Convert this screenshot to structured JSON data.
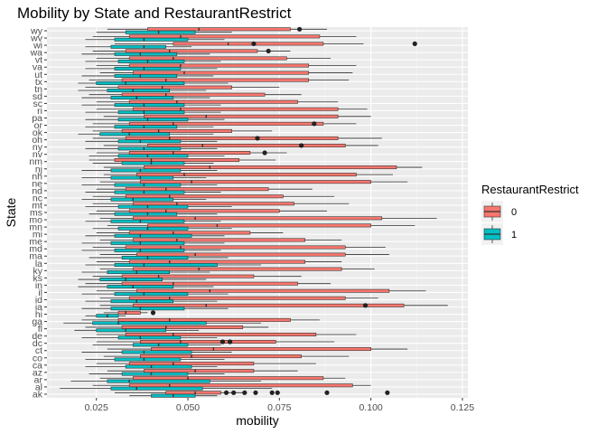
{
  "chart_data": {
    "type": "boxplot-horizontal",
    "title": "Mobility by State and RestaurantRestrict",
    "xlabel": "mobility",
    "ylabel": "State",
    "xlim": [
      0.0115,
      0.1265
    ],
    "x_ticks": [
      0.025,
      0.05,
      0.075,
      0.1,
      0.125
    ],
    "x_tick_labels": [
      "0.025",
      "0.050",
      "0.075",
      "0.100",
      "0.125"
    ],
    "grid": true,
    "legend": {
      "title": "RestaurantRestrict",
      "placement": "right",
      "entries": [
        {
          "label": "0",
          "color": "#F8766D"
        },
        {
          "label": "1",
          "color": "#00BFC4"
        }
      ]
    },
    "categories": [
      "ak",
      "al",
      "ar",
      "az",
      "ca",
      "co",
      "ct",
      "dc",
      "de",
      "fl",
      "ga",
      "hi",
      "ia",
      "id",
      "il",
      "in",
      "ks",
      "ky",
      "la",
      "ma",
      "md",
      "me",
      "mi",
      "mn",
      "mo",
      "ms",
      "mt",
      "nc",
      "nd",
      "ne",
      "nh",
      "nj",
      "nm",
      "nv",
      "ny",
      "oh",
      "ok",
      "or",
      "pa",
      "ri",
      "sc",
      "sd",
      "tn",
      "tx",
      "ut",
      "va",
      "vt",
      "wa",
      "wi",
      "wv",
      "wy"
    ],
    "series": [
      {
        "name": "0",
        "color": "#F8766D",
        "boxes": [
          [
            0.03,
            0.044,
            0.052,
            0.059,
            0.066
          ],
          [
            0.024,
            0.034,
            0.045,
            0.095,
            0.1
          ],
          [
            0.026,
            0.035,
            0.05,
            0.087,
            0.093
          ],
          [
            0.028,
            0.038,
            0.052,
            0.068,
            0.08
          ],
          [
            0.025,
            0.034,
            0.046,
            0.068,
            0.085
          ],
          [
            0.027,
            0.037,
            0.051,
            0.081,
            0.094
          ],
          [
            0.028,
            0.04,
            0.057,
            0.1,
            0.11
          ],
          [
            0.025,
            0.037,
            0.048,
            0.074,
            0.09
          ],
          [
            0.025,
            0.033,
            0.046,
            0.085,
            0.096
          ],
          [
            0.022,
            0.032,
            0.044,
            0.065,
            0.072
          ],
          [
            0.021,
            0.031,
            0.045,
            0.078,
            0.086
          ],
          [
            0.027,
            0.031,
            0.033,
            0.037,
            0.039
          ],
          [
            0.026,
            0.035,
            0.055,
            0.109,
            0.121
          ],
          [
            0.026,
            0.034,
            0.045,
            0.093,
            0.102
          ],
          [
            0.025,
            0.036,
            0.056,
            0.105,
            0.115
          ],
          [
            0.022,
            0.032,
            0.046,
            0.08,
            0.089
          ],
          [
            0.024,
            0.032,
            0.042,
            0.068,
            0.081
          ],
          [
            0.026,
            0.035,
            0.053,
            0.092,
            0.101
          ],
          [
            0.025,
            0.034,
            0.045,
            0.082,
            0.092
          ],
          [
            0.026,
            0.036,
            0.052,
            0.093,
            0.105
          ],
          [
            0.024,
            0.033,
            0.048,
            0.093,
            0.104
          ],
          [
            0.026,
            0.035,
            0.047,
            0.082,
            0.092
          ],
          [
            0.025,
            0.034,
            0.046,
            0.067,
            0.076
          ],
          [
            0.028,
            0.039,
            0.058,
            0.1,
            0.112
          ],
          [
            0.026,
            0.035,
            0.052,
            0.103,
            0.118
          ],
          [
            0.025,
            0.034,
            0.044,
            0.075,
            0.088
          ],
          [
            0.024,
            0.035,
            0.047,
            0.079,
            0.094
          ],
          [
            0.024,
            0.033,
            0.045,
            0.076,
            0.09
          ],
          [
            0.025,
            0.033,
            0.044,
            0.072,
            0.084
          ],
          [
            0.026,
            0.037,
            0.051,
            0.1,
            0.11
          ],
          [
            0.027,
            0.036,
            0.049,
            0.096,
            0.106
          ],
          [
            0.027,
            0.038,
            0.056,
            0.107,
            0.114
          ],
          [
            0.023,
            0.03,
            0.04,
            0.064,
            0.074
          ],
          [
            0.025,
            0.034,
            0.046,
            0.067,
            0.077
          ],
          [
            0.027,
            0.039,
            0.054,
            0.093,
            0.102
          ],
          [
            0.024,
            0.033,
            0.045,
            0.091,
            0.103
          ],
          [
            0.024,
            0.032,
            0.042,
            0.062,
            0.073
          ],
          [
            0.024,
            0.034,
            0.046,
            0.087,
            0.096
          ],
          [
            0.027,
            0.038,
            0.055,
            0.091,
            0.1
          ],
          [
            0.025,
            0.035,
            0.048,
            0.091,
            0.099
          ],
          [
            0.025,
            0.034,
            0.047,
            0.08,
            0.091
          ],
          [
            0.023,
            0.032,
            0.044,
            0.071,
            0.081
          ],
          [
            0.022,
            0.031,
            0.043,
            0.062,
            0.075
          ],
          [
            0.023,
            0.032,
            0.044,
            0.083,
            0.094
          ],
          [
            0.026,
            0.035,
            0.049,
            0.083,
            0.095
          ],
          [
            0.025,
            0.034,
            0.048,
            0.083,
            0.096
          ],
          [
            0.025,
            0.034,
            0.046,
            0.077,
            0.089
          ],
          [
            0.024,
            0.033,
            0.045,
            0.069,
            0.078
          ],
          [
            0.03,
            0.046,
            0.061,
            0.087,
            0.098
          ],
          [
            0.024,
            0.034,
            0.048,
            0.086,
            0.096
          ],
          [
            0.028,
            0.039,
            0.053,
            0.078,
            0.088
          ]
        ]
      },
      {
        "name": "1",
        "color": "#00BFC4",
        "boxes": [
          [
            0.034,
            0.04,
            0.046,
            0.052,
            0.058
          ],
          [
            0.015,
            0.029,
            0.036,
            0.054,
            0.073
          ],
          [
            0.018,
            0.028,
            0.034,
            0.056,
            0.07
          ],
          [
            0.023,
            0.032,
            0.04,
            0.05,
            0.06
          ],
          [
            0.022,
            0.033,
            0.04,
            0.051,
            0.058
          ],
          [
            0.022,
            0.03,
            0.038,
            0.048,
            0.06
          ],
          [
            0.021,
            0.032,
            0.038,
            0.051,
            0.062
          ],
          [
            0.024,
            0.035,
            0.042,
            0.05,
            0.059
          ],
          [
            0.021,
            0.031,
            0.037,
            0.048,
            0.058
          ],
          [
            0.019,
            0.025,
            0.033,
            0.044,
            0.053
          ],
          [
            0.016,
            0.024,
            0.031,
            0.055,
            0.07
          ],
          [
            0.022,
            0.025,
            0.028,
            0.031,
            0.033
          ],
          [
            0.021,
            0.029,
            0.037,
            0.049,
            0.061
          ],
          [
            0.022,
            0.029,
            0.036,
            0.046,
            0.058
          ],
          [
            0.021,
            0.03,
            0.038,
            0.05,
            0.061
          ],
          [
            0.02,
            0.028,
            0.035,
            0.046,
            0.057
          ],
          [
            0.02,
            0.026,
            0.033,
            0.043,
            0.055
          ],
          [
            0.021,
            0.028,
            0.036,
            0.045,
            0.056
          ],
          [
            0.022,
            0.03,
            0.038,
            0.058,
            0.07
          ],
          [
            0.023,
            0.032,
            0.039,
            0.05,
            0.061
          ],
          [
            0.021,
            0.03,
            0.037,
            0.049,
            0.059
          ],
          [
            0.021,
            0.029,
            0.037,
            0.049,
            0.06
          ],
          [
            0.022,
            0.03,
            0.037,
            0.051,
            0.06
          ],
          [
            0.024,
            0.031,
            0.039,
            0.05,
            0.062
          ],
          [
            0.022,
            0.029,
            0.037,
            0.049,
            0.059
          ],
          [
            0.023,
            0.03,
            0.039,
            0.047,
            0.058
          ],
          [
            0.022,
            0.031,
            0.039,
            0.05,
            0.062
          ],
          [
            0.021,
            0.029,
            0.035,
            0.046,
            0.055
          ],
          [
            0.022,
            0.03,
            0.038,
            0.049,
            0.059
          ],
          [
            0.021,
            0.03,
            0.038,
            0.048,
            0.058
          ],
          [
            0.021,
            0.029,
            0.037,
            0.046,
            0.055
          ],
          [
            0.021,
            0.029,
            0.037,
            0.048,
            0.058
          ],
          [
            0.024,
            0.032,
            0.04,
            0.049,
            0.057
          ],
          [
            0.023,
            0.031,
            0.039,
            0.05,
            0.06
          ],
          [
            0.022,
            0.031,
            0.038,
            0.048,
            0.058
          ],
          [
            0.022,
            0.031,
            0.037,
            0.048,
            0.058
          ],
          [
            0.02,
            0.026,
            0.034,
            0.045,
            0.057
          ],
          [
            0.022,
            0.03,
            0.038,
            0.047,
            0.057
          ],
          [
            0.022,
            0.031,
            0.039,
            0.05,
            0.06
          ],
          [
            0.022,
            0.031,
            0.038,
            0.049,
            0.059
          ],
          [
            0.021,
            0.03,
            0.038,
            0.049,
            0.059
          ],
          [
            0.021,
            0.029,
            0.036,
            0.046,
            0.056
          ],
          [
            0.02,
            0.028,
            0.035,
            0.045,
            0.055
          ],
          [
            0.02,
            0.025,
            0.033,
            0.049,
            0.061
          ],
          [
            0.021,
            0.03,
            0.037,
            0.047,
            0.057
          ],
          [
            0.022,
            0.03,
            0.038,
            0.048,
            0.058
          ],
          [
            0.022,
            0.031,
            0.039,
            0.049,
            0.059
          ],
          [
            0.021,
            0.03,
            0.037,
            0.047,
            0.056
          ],
          [
            0.022,
            0.029,
            0.038,
            0.044,
            0.051
          ],
          [
            0.022,
            0.03,
            0.038,
            0.05,
            0.06
          ],
          [
            0.025,
            0.033,
            0.042,
            0.052,
            0.062
          ]
        ]
      }
    ],
    "outliers": [
      {
        "series": "0",
        "state": "ak",
        "values": [
          0.0605,
          0.0625,
          0.0655,
          0.0685,
          0.073,
          0.0745,
          0.088,
          0.1045
        ]
      },
      {
        "series": "0",
        "state": "hi",
        "values": [
          0.0405
        ]
      },
      {
        "series": "0",
        "state": "ia",
        "values": [
          0.0985
        ]
      },
      {
        "series": "0",
        "state": "dc",
        "values": [
          0.0595,
          0.0615
        ]
      },
      {
        "series": "0",
        "state": "ny",
        "values": [
          0.081
        ]
      },
      {
        "series": "0",
        "state": "nv",
        "values": [
          0.071
        ]
      },
      {
        "series": "0",
        "state": "oh",
        "values": [
          0.069
        ]
      },
      {
        "series": "0",
        "state": "or",
        "values": [
          0.0845
        ]
      },
      {
        "series": "0",
        "state": "wa",
        "values": [
          0.072
        ]
      },
      {
        "series": "0",
        "state": "wi",
        "values": [
          0.068,
          0.112
        ]
      },
      {
        "series": "0",
        "state": "wy",
        "values": [
          0.0805
        ]
      }
    ]
  }
}
